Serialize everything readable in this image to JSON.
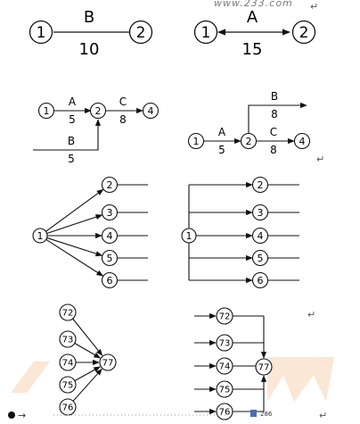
{
  "watermark": "www.233.com",
  "marks": {
    "return_mark": "↵",
    "bottom_arrow": "→",
    "bottom_word": "286"
  },
  "colors": {
    "ink": "#111111",
    "watermark_bg": "#f6d3b2"
  },
  "diagrams": {
    "d1": {
      "node_a": "1",
      "node_b": "2",
      "activity": "B",
      "duration": "10"
    },
    "d2": {
      "node_a": "1",
      "node_b": "2",
      "activity": "A",
      "duration": "15"
    },
    "d3": {
      "n1": "1",
      "n2": "2",
      "n3": "4",
      "a_label": "A",
      "a_dur": "5",
      "c_label": "C",
      "c_dur": "8",
      "b_label": "B",
      "b_dur": "5"
    },
    "d4": {
      "n1": "1",
      "n2": "2",
      "n3": "4",
      "a_label": "A",
      "a_dur": "5",
      "c_label": "C",
      "c_dur": "8",
      "b_label": "B",
      "b_dur": "8"
    },
    "d5": {
      "source": "1",
      "targets": [
        "2",
        "3",
        "4",
        "5",
        "6"
      ]
    },
    "d6": {
      "source": "1",
      "targets": [
        "2",
        "3",
        "4",
        "5",
        "6"
      ]
    },
    "d7": {
      "sources": [
        "72",
        "73",
        "74",
        "75",
        "76"
      ],
      "sink": "77"
    },
    "d8": {
      "sources": [
        "72",
        "73",
        "74",
        "75",
        "76"
      ],
      "sink": "77"
    }
  }
}
